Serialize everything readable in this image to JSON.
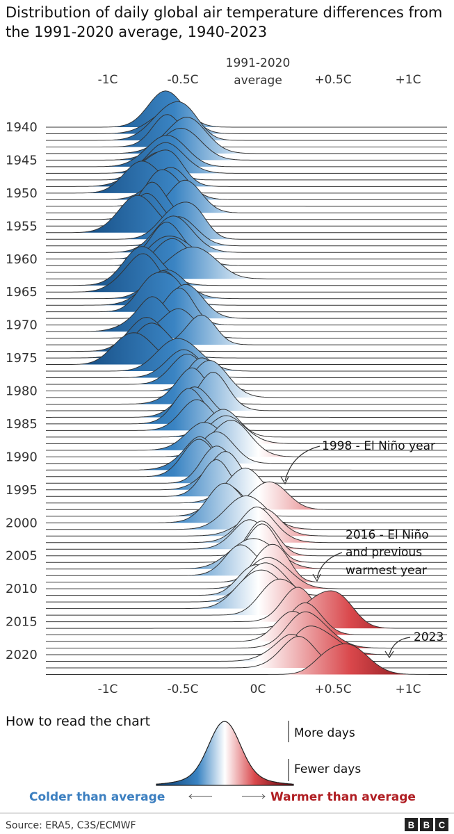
{
  "title": "Distribution of daily global air temperature differences from the 1991-2020 average, 1940-2023",
  "chart_data": {
    "type": "ridgeline",
    "title": "Distribution of daily global air temperature differences from the 1991-2020 average, 1940-2023",
    "x_ticks_top": [
      "-1C",
      "-0.5C",
      "1991-2020 average",
      "+0.5C",
      "+1C"
    ],
    "x_ticks_bottom": [
      "-1C",
      "-0.5C",
      "0C",
      "+0.5C",
      "+1C"
    ],
    "x_tick_values": [
      -1,
      -0.5,
      0,
      0.5,
      1
    ],
    "xlim": [
      -1.4,
      1.27
    ],
    "y_tick_labels": [
      "1940",
      "1945",
      "1950",
      "1955",
      "1960",
      "1965",
      "1970",
      "1975",
      "1980",
      "1985",
      "1990",
      "1995",
      "2000",
      "2005",
      "2010",
      "2015",
      "2020"
    ],
    "years": [
      1940,
      2023
    ],
    "yearly_mean_anomaly_c": {
      "1940": -0.6,
      "1941": -0.6,
      "1942": -0.6,
      "1943": -0.6,
      "1944": -0.5,
      "1945": -0.55,
      "1946": -0.65,
      "1947": -0.6,
      "1948": -0.65,
      "1949": -0.7,
      "1950": -0.8,
      "1951": -0.6,
      "1952": -0.6,
      "1953": -0.5,
      "1954": -0.7,
      "1955": -0.75,
      "1956": -0.8,
      "1957": -0.55,
      "1958": -0.5,
      "1959": -0.55,
      "1960": -0.6,
      "1961": -0.55,
      "1962": -0.55,
      "1963": -0.5,
      "1964": -0.75,
      "1965": -0.75,
      "1966": -0.6,
      "1967": -0.65,
      "1968": -0.7,
      "1969": -0.5,
      "1970": -0.55,
      "1971": -0.7,
      "1972": -0.55,
      "1973": -0.4,
      "1974": -0.75,
      "1975": -0.7,
      "1976": -0.8,
      "1977": -0.5,
      "1978": -0.5,
      "1979": -0.45,
      "1980": -0.35,
      "1981": -0.3,
      "1982": -0.45,
      "1983": -0.3,
      "1984": -0.45,
      "1985": -0.45,
      "1986": -0.4,
      "1987": -0.25,
      "1988": -0.2,
      "1989": -0.35,
      "1990": -0.2,
      "1991": -0.25,
      "1992": -0.4,
      "1993": -0.4,
      "1994": -0.3,
      "1995": -0.2,
      "1996": -0.3,
      "1997": -0.1,
      "1998": 0.1,
      "1999": -0.2,
      "2000": -0.2,
      "2001": -0.05,
      "2002": 0.0,
      "2003": 0.0,
      "2004": -0.05,
      "2005": 0.05,
      "2006": 0.0,
      "2007": 0.0,
      "2008": -0.1,
      "2009": 0.05,
      "2010": 0.1,
      "2011": -0.05,
      "2012": 0.0,
      "2013": 0.05,
      "2014": 0.1,
      "2015": 0.25,
      "2016": 0.4,
      "2017": 0.3,
      "2018": 0.2,
      "2019": 0.35,
      "2020": 0.4,
      "2021": 0.2,
      "2022": 0.25,
      "2023": 0.6
    },
    "annotations": [
      {
        "text": "1998 - El Niño year",
        "year": 1998
      },
      {
        "text": "2016 - El Niño and previous warmest year",
        "year": 2016
      },
      {
        "text": "2023",
        "year": 2023
      }
    ],
    "legend": {
      "heading": "How to read the chart",
      "more": "More days",
      "fewer": "Fewer days",
      "colder": "Colder than average",
      "warmer": "Warmer than average"
    },
    "colors": {
      "cold_dark": "#08386b",
      "cold_mid": "#3a84c3",
      "neutral": "#ffffff",
      "warm_mid": "#d9474b",
      "warm_dark": "#5a0006",
      "line": "#333333"
    }
  },
  "annotation_labels": {
    "y1998": "1998 - El Niño year",
    "y2016_line1": "2016 - El Niño",
    "y2016_line2": "and previous",
    "y2016_line3": "warmest year",
    "y2023": "2023"
  },
  "top_axis": {
    "minus1": "-1C",
    "minus05": "-0.5C",
    "avg_line1": "1991-2020",
    "avg_line2": "average",
    "plus05": "+0.5C",
    "plus1": "+1C"
  },
  "bottom_axis": {
    "minus1": "-1C",
    "minus05": "-0.5C",
    "zero": "0C",
    "plus05": "+0.5C",
    "plus1": "+1C"
  },
  "footer": {
    "source": "Source: ERA5, C3S/ECMWF",
    "logo": [
      "B",
      "B",
      "C"
    ]
  }
}
